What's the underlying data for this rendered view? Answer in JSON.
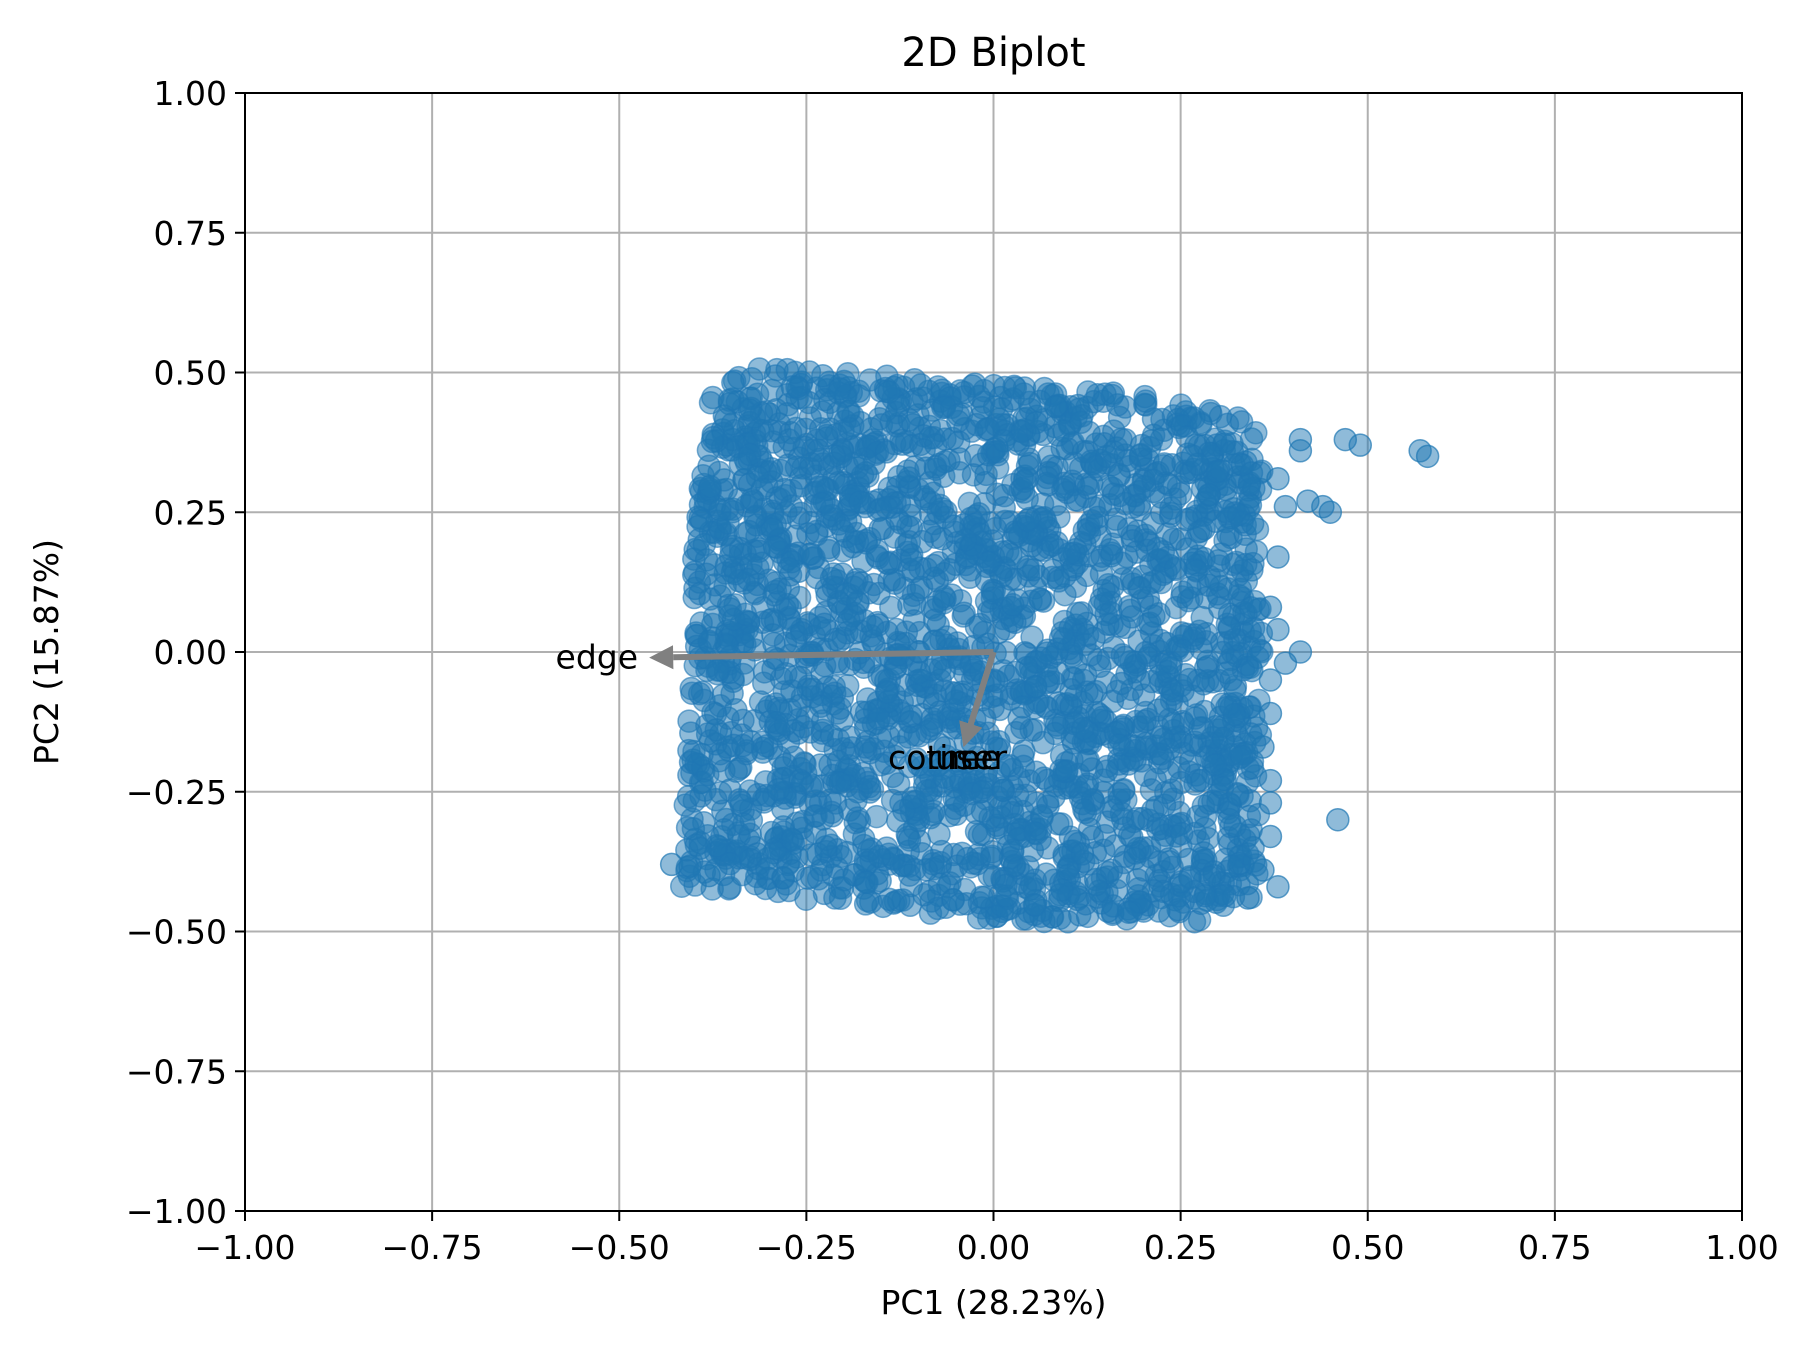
{
  "chart_data": {
    "type": "scatter",
    "title": "2D Biplot",
    "xlabel": "PC1 (28.23%)",
    "ylabel": "PC2 (15.87%)",
    "xlim": [
      -1.0,
      1.0
    ],
    "ylim": [
      -1.0,
      1.0
    ],
    "xticks": [
      -1.0,
      -0.75,
      -0.5,
      -0.25,
      0.0,
      0.25,
      0.5,
      0.75,
      1.0
    ],
    "yticks": [
      -1.0,
      -0.75,
      -0.5,
      -0.25,
      0.0,
      0.25,
      0.5,
      0.75,
      1.0
    ],
    "xtick_labels": [
      "−1.00",
      "−0.75",
      "−0.50",
      "−0.25",
      "0.00",
      "0.25",
      "0.50",
      "0.75",
      "1.00"
    ],
    "ytick_labels": [
      "−1.00",
      "−0.75",
      "−0.50",
      "−0.25",
      "0.00",
      "0.25",
      "0.50",
      "0.75",
      "1.00"
    ],
    "grid": true,
    "point_color": "#1f77b4",
    "point_alpha": 0.5,
    "arrow_color": "#808080",
    "point_cloud": {
      "polygon": [
        [
          -0.33,
          0.51
        ],
        [
          -0.2,
          0.5
        ],
        [
          0.0,
          0.48
        ],
        [
          0.2,
          0.46
        ],
        [
          0.36,
          0.41
        ],
        [
          0.36,
          0.2
        ],
        [
          0.36,
          -0.2
        ],
        [
          0.35,
          -0.45
        ],
        [
          0.28,
          -0.49
        ],
        [
          0.0,
          -0.48
        ],
        [
          -0.2,
          -0.45
        ],
        [
          -0.42,
          -0.42
        ],
        [
          -0.41,
          -0.2
        ],
        [
          -0.4,
          0.2
        ],
        [
          -0.38,
          0.45
        ]
      ]
    },
    "outliers": [
      [
        0.41,
        0.38
      ],
      [
        0.47,
        0.38
      ],
      [
        0.49,
        0.37
      ],
      [
        0.57,
        0.36
      ],
      [
        0.58,
        0.35
      ],
      [
        0.41,
        0.36
      ],
      [
        0.38,
        0.31
      ],
      [
        0.42,
        0.27
      ],
      [
        0.44,
        0.26
      ],
      [
        0.45,
        0.25
      ],
      [
        0.39,
        0.26
      ],
      [
        0.38,
        0.17
      ],
      [
        0.37,
        0.08
      ],
      [
        0.38,
        0.04
      ],
      [
        0.41,
        0.0
      ],
      [
        0.39,
        -0.02
      ],
      [
        0.37,
        -0.05
      ],
      [
        0.37,
        -0.11
      ],
      [
        0.36,
        -0.17
      ],
      [
        0.37,
        -0.23
      ],
      [
        0.37,
        -0.27
      ],
      [
        0.37,
        -0.33
      ],
      [
        0.46,
        -0.3
      ],
      [
        0.38,
        -0.42
      ],
      [
        -0.43,
        -0.38
      ],
      [
        -0.38,
        -0.4
      ],
      [
        0.36,
        -0.39
      ],
      [
        0.34,
        -0.44
      ]
    ],
    "loadings": [
      {
        "name": "edge",
        "x": -0.46,
        "y": -0.01,
        "label_x": -0.53,
        "label_y": -0.01
      },
      {
        "name": "corner",
        "x": -0.04,
        "y": -0.17,
        "label_x": -0.07,
        "label_y": -0.19
      },
      {
        "name": "time",
        "x": -0.04,
        "y": -0.17,
        "label_x": -0.04,
        "label_y": -0.19
      },
      {
        "name": "user",
        "x": -0.04,
        "y": -0.17,
        "label_x": -0.03,
        "label_y": -0.19
      }
    ]
  }
}
